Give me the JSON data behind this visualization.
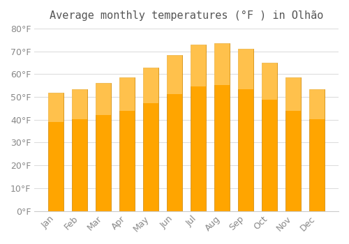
{
  "title": "Average monthly temperatures (°F ) in Olhão",
  "months": [
    "Jan",
    "Feb",
    "Mar",
    "Apr",
    "May",
    "Jun",
    "Jul",
    "Aug",
    "Sep",
    "Oct",
    "Nov",
    "Dec"
  ],
  "values": [
    52,
    53.5,
    56,
    58.5,
    63,
    68.5,
    73,
    73.5,
    71,
    65,
    58.5,
    53.5
  ],
  "bar_color": "#FFA500",
  "bar_edge_color": "#CC8400",
  "bar_gradient_top": "#FFD580",
  "ylim": [
    0,
    80
  ],
  "ytick_step": 10,
  "background_color": "#ffffff",
  "grid_color": "#dddddd",
  "title_fontsize": 11,
  "tick_fontsize": 9
}
